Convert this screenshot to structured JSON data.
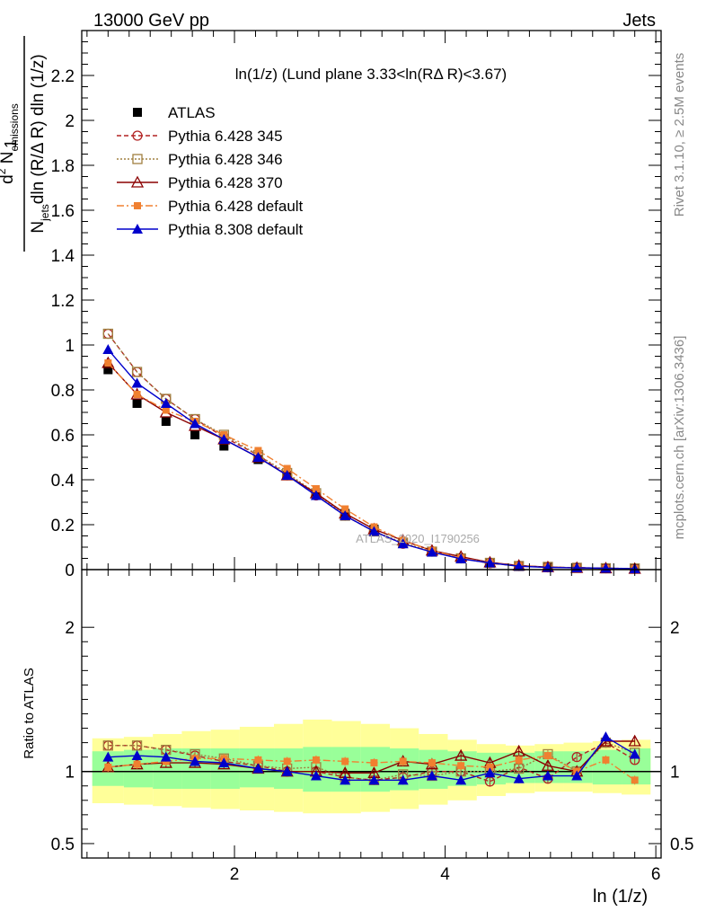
{
  "header": {
    "energy_label": "13000 GeV pp",
    "process_label": "Jets",
    "side_rivet": "Rivet 3.1.10, ≥ 2.5M events",
    "side_mcplots": "mcplots.cern.ch [arXiv:1306.3436]",
    "watermark": "ATLAS_2020_I1790256"
  },
  "chart_data": [
    {
      "type": "line",
      "title": "ln(1/z) (Lund plane 3.33<ln(RΔ R)<3.67)",
      "ylabel": "1/N_jets dln(R/Δ R) dln(1/z) d² N_emissions",
      "xlim": [
        0.55,
        6.05
      ],
      "ylim": [
        0,
        2.4
      ],
      "yticks": [
        "0",
        "0.2",
        "0.4",
        "0.6",
        "0.8",
        "1",
        "1.2",
        "1.4",
        "1.6",
        "1.8",
        "2",
        "2.2"
      ],
      "x": [
        0.8,
        1.075,
        1.35,
        1.625,
        1.9,
        2.225,
        2.5,
        2.775,
        3.05,
        3.325,
        3.6,
        3.875,
        4.15,
        4.425,
        4.7,
        4.975,
        5.25,
        5.525,
        5.8
      ],
      "series": [
        {
          "name": "ATLAS",
          "color": "#000000",
          "values": [
            0.89,
            0.74,
            0.66,
            0.6,
            0.55,
            0.49,
            0.42,
            0.33,
            0.25,
            0.18,
            0.12,
            0.08,
            0.05,
            0.03,
            0.015,
            0.01,
            0.008,
            0.005,
            0.004
          ]
        },
        {
          "name": "Pythia 6.428 345",
          "color": "#b22222",
          "values": [
            1.05,
            0.88,
            0.76,
            0.67,
            0.59,
            0.51,
            0.42,
            0.33,
            0.24,
            0.17,
            0.115,
            0.08,
            0.05,
            0.028,
            0.016,
            0.01,
            0.009,
            0.006,
            0.004
          ]
        },
        {
          "name": "Pythia 6.428 346",
          "color": "#a08040",
          "values": [
            1.05,
            0.88,
            0.76,
            0.67,
            0.6,
            0.51,
            0.43,
            0.34,
            0.24,
            0.17,
            0.12,
            0.08,
            0.05,
            0.03,
            0.016,
            0.012,
            0.008,
            0.006,
            0.005
          ]
        },
        {
          "name": "Pythia 6.428 370",
          "color": "#8b0000",
          "values": [
            0.92,
            0.78,
            0.7,
            0.64,
            0.58,
            0.5,
            0.42,
            0.34,
            0.25,
            0.18,
            0.13,
            0.085,
            0.058,
            0.032,
            0.018,
            0.011,
            0.008,
            0.006,
            0.004
          ]
        },
        {
          "name": "Pythia 6.428 default",
          "color": "#f08030",
          "values": [
            0.92,
            0.78,
            0.71,
            0.66,
            0.6,
            0.53,
            0.45,
            0.36,
            0.27,
            0.19,
            0.13,
            0.085,
            0.052,
            0.031,
            0.017,
            0.011,
            0.008,
            0.005,
            0.004
          ]
        },
        {
          "name": "Pythia 8.308 default",
          "color": "#0000cc",
          "values": [
            0.98,
            0.83,
            0.74,
            0.65,
            0.58,
            0.5,
            0.42,
            0.33,
            0.24,
            0.17,
            0.115,
            0.078,
            0.048,
            0.03,
            0.015,
            0.01,
            0.008,
            0.006,
            0.004
          ]
        }
      ]
    },
    {
      "type": "line",
      "title": "",
      "ylabel": "Ratio to ATLAS",
      "xlabel": "ln (1/z)",
      "xlim": [
        0.55,
        6.05
      ],
      "ylim": [
        0.4,
        2.4
      ],
      "yticks": [
        "0.5",
        "1",
        "2"
      ],
      "xticks": [
        "2",
        "4",
        "6"
      ],
      "band_edges": [
        0.65,
        0.95,
        1.225,
        1.5,
        1.775,
        2.05,
        2.375,
        2.65,
        2.925,
        3.2,
        3.475,
        3.75,
        4.025,
        4.3,
        4.575,
        4.85,
        5.125,
        5.4,
        5.675,
        5.95
      ],
      "stat_band": [
        [
          0.9,
          1.14
        ],
        [
          0.89,
          1.15
        ],
        [
          0.88,
          1.16
        ],
        [
          0.88,
          1.16
        ],
        [
          0.88,
          1.16
        ],
        [
          0.89,
          1.16
        ],
        [
          0.88,
          1.16
        ],
        [
          0.86,
          1.17
        ],
        [
          0.86,
          1.17
        ],
        [
          0.86,
          1.17
        ],
        [
          0.87,
          1.16
        ],
        [
          0.88,
          1.15
        ],
        [
          0.9,
          1.14
        ],
        [
          0.91,
          1.13
        ],
        [
          0.92,
          1.13
        ],
        [
          0.92,
          1.14
        ],
        [
          0.92,
          1.14
        ],
        [
          0.91,
          1.15
        ],
        [
          0.91,
          1.16
        ]
      ],
      "total_band": [
        [
          0.78,
          1.23
        ],
        [
          0.77,
          1.24
        ],
        [
          0.76,
          1.26
        ],
        [
          0.75,
          1.28
        ],
        [
          0.74,
          1.29
        ],
        [
          0.73,
          1.31
        ],
        [
          0.72,
          1.33
        ],
        [
          0.71,
          1.36
        ],
        [
          0.71,
          1.35
        ],
        [
          0.72,
          1.33
        ],
        [
          0.74,
          1.3
        ],
        [
          0.77,
          1.26
        ],
        [
          0.8,
          1.22
        ],
        [
          0.83,
          1.19
        ],
        [
          0.85,
          1.18
        ],
        [
          0.86,
          1.19
        ],
        [
          0.86,
          1.2
        ],
        [
          0.85,
          1.21
        ],
        [
          0.84,
          1.22
        ]
      ],
      "x": [
        0.8,
        1.075,
        1.35,
        1.625,
        1.9,
        2.225,
        2.5,
        2.775,
        3.05,
        3.325,
        3.6,
        3.875,
        4.15,
        4.425,
        4.7,
        4.975,
        5.25,
        5.525,
        5.8
      ],
      "series": [
        {
          "name": "Pythia 6.428 345",
          "color": "#b22222",
          "values": [
            1.18,
            1.18,
            1.15,
            1.11,
            1.07,
            1.04,
            1.0,
            1.0,
            0.96,
            0.94,
            0.96,
            1.0,
            1.0,
            0.93,
            1.03,
            0.95,
            1.1,
            1.2,
            1.08
          ]
        },
        {
          "name": "Pythia 6.428 346",
          "color": "#a08040",
          "values": [
            1.18,
            1.18,
            1.15,
            1.12,
            1.09,
            1.04,
            1.02,
            1.03,
            0.96,
            0.94,
            0.98,
            0.97,
            1.0,
            1.0,
            1.02,
            1.12,
            1.0,
            1.2,
            1.13
          ]
        },
        {
          "name": "Pythia 6.428 370",
          "color": "#8b0000",
          "values": [
            1.03,
            1.05,
            1.06,
            1.06,
            1.05,
            1.02,
            1.0,
            1.0,
            0.99,
            0.99,
            1.07,
            1.05,
            1.11,
            1.06,
            1.14,
            1.04,
            1.0,
            1.21,
            1.21
          ]
        },
        {
          "name": "Pythia 6.428 default",
          "color": "#f08030",
          "values": [
            1.03,
            1.05,
            1.07,
            1.09,
            1.09,
            1.08,
            1.07,
            1.08,
            1.07,
            1.06,
            1.07,
            1.06,
            1.04,
            1.03,
            1.08,
            1.11,
            1.0,
            1.08,
            0.94
          ]
        },
        {
          "name": "Pythia 8.308 default",
          "color": "#0000cc",
          "values": [
            1.1,
            1.11,
            1.1,
            1.07,
            1.06,
            1.02,
            1.0,
            0.97,
            0.94,
            0.94,
            0.94,
            0.97,
            0.94,
            0.99,
            0.95,
            0.97,
            0.97,
            1.24,
            1.12
          ]
        }
      ]
    }
  ]
}
